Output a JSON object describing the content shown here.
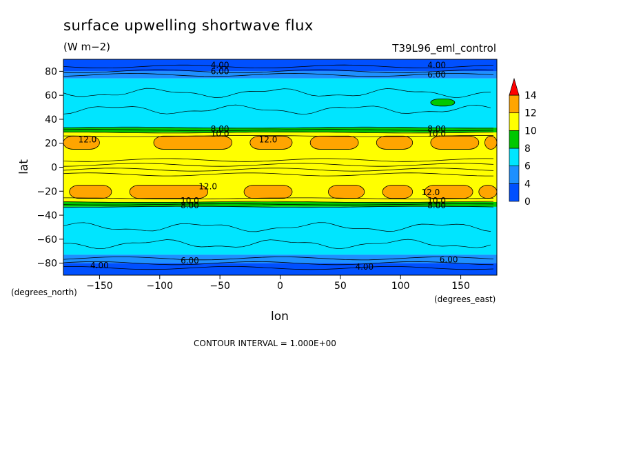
{
  "chart_data": {
    "type": "heatmap",
    "title": "surface upwelling shortwave flux",
    "units": "(W m−2)",
    "experiment": "T39L96_eml_control",
    "xlabel": "lon",
    "ylabel": "lat",
    "x_units_label": "(degrees_east)",
    "y_units_label": "(degrees_north)",
    "xlim": [
      -180,
      180
    ],
    "ylim": [
      -90,
      90
    ],
    "x_ticks": [
      -150,
      -100,
      -50,
      0,
      50,
      100,
      150
    ],
    "y_ticks": [
      -80,
      -60,
      -40,
      -20,
      0,
      20,
      40,
      60,
      80
    ],
    "x_tick_labels": [
      "−150",
      "−100",
      "−50",
      "0",
      "50",
      "100",
      "150"
    ],
    "y_tick_labels": [
      "−80",
      "−60",
      "−40",
      "−20",
      "0",
      "20",
      "40",
      "60",
      "80"
    ],
    "colorbar": {
      "levels": [
        0,
        2,
        4,
        6,
        8,
        10,
        12,
        14
      ],
      "tick_labels": [
        "0",
        "4",
        "6",
        "8",
        "10",
        "12",
        "14"
      ],
      "colors": [
        "#0050ff",
        "#1e90ff",
        "#00e5ff",
        "#00c800",
        "#ffff00",
        "#ffa500",
        "#ff0000"
      ],
      "extend": "max"
    },
    "contour_interval_text": "CONTOUR INTERVAL = 1.000E+00",
    "contour_labels": [
      "4.00",
      "6.00",
      "8.00",
      "10.0",
      "12.0"
    ],
    "zonal_bands": [
      {
        "lat": [
          80,
          90
        ],
        "value": 3
      },
      {
        "lat": [
          74,
          80
        ],
        "value": 5
      },
      {
        "lat": [
          33,
          74
        ],
        "value": 7
      },
      {
        "lat": [
          29,
          33
        ],
        "value": 9
      },
      {
        "lat": [
          26,
          29
        ],
        "value": 11
      },
      {
        "lat": [
          -26,
          26
        ],
        "value": 11
      },
      {
        "lat": [
          -29,
          -26
        ],
        "value": 11
      },
      {
        "lat": [
          -33,
          -29
        ],
        "value": 9
      },
      {
        "lat": [
          -73,
          -33
        ],
        "value": 7
      },
      {
        "lat": [
          -80,
          -73
        ],
        "value": 5
      },
      {
        "lat": [
          -90,
          -80
        ],
        "value": 3
      }
    ],
    "maxima_regions": [
      {
        "lon": [
          -180,
          -150
        ],
        "lat": [
          15,
          26
        ],
        "value": 13
      },
      {
        "lon": [
          -105,
          -40
        ],
        "lat": [
          15,
          26
        ],
        "value": 13
      },
      {
        "lon": [
          -25,
          10
        ],
        "lat": [
          15,
          26
        ],
        "value": 13
      },
      {
        "lon": [
          25,
          65
        ],
        "lat": [
          15,
          26
        ],
        "value": 13
      },
      {
        "lon": [
          80,
          110
        ],
        "lat": [
          15,
          26
        ],
        "value": 13
      },
      {
        "lon": [
          125,
          165
        ],
        "lat": [
          15,
          26
        ],
        "value": 13
      },
      {
        "lon": [
          170,
          180
        ],
        "lat": [
          15,
          26
        ],
        "value": 13
      },
      {
        "lon": [
          -175,
          -140
        ],
        "lat": [
          -26,
          -15
        ],
        "value": 13
      },
      {
        "lon": [
          -125,
          -60
        ],
        "lat": [
          -26,
          -15
        ],
        "value": 13
      },
      {
        "lon": [
          -30,
          10
        ],
        "lat": [
          -26,
          -15
        ],
        "value": 13
      },
      {
        "lon": [
          40,
          70
        ],
        "lat": [
          -26,
          -15
        ],
        "value": 13
      },
      {
        "lon": [
          85,
          110
        ],
        "lat": [
          -26,
          -15
        ],
        "value": 13
      },
      {
        "lon": [
          120,
          160
        ],
        "lat": [
          -26,
          -15
        ],
        "value": 13
      },
      {
        "lon": [
          165,
          180
        ],
        "lat": [
          -26,
          -15
        ],
        "value": 13
      },
      {
        "lon": [
          125,
          145
        ],
        "lat": [
          51,
          57
        ],
        "value": 9
      }
    ]
  }
}
